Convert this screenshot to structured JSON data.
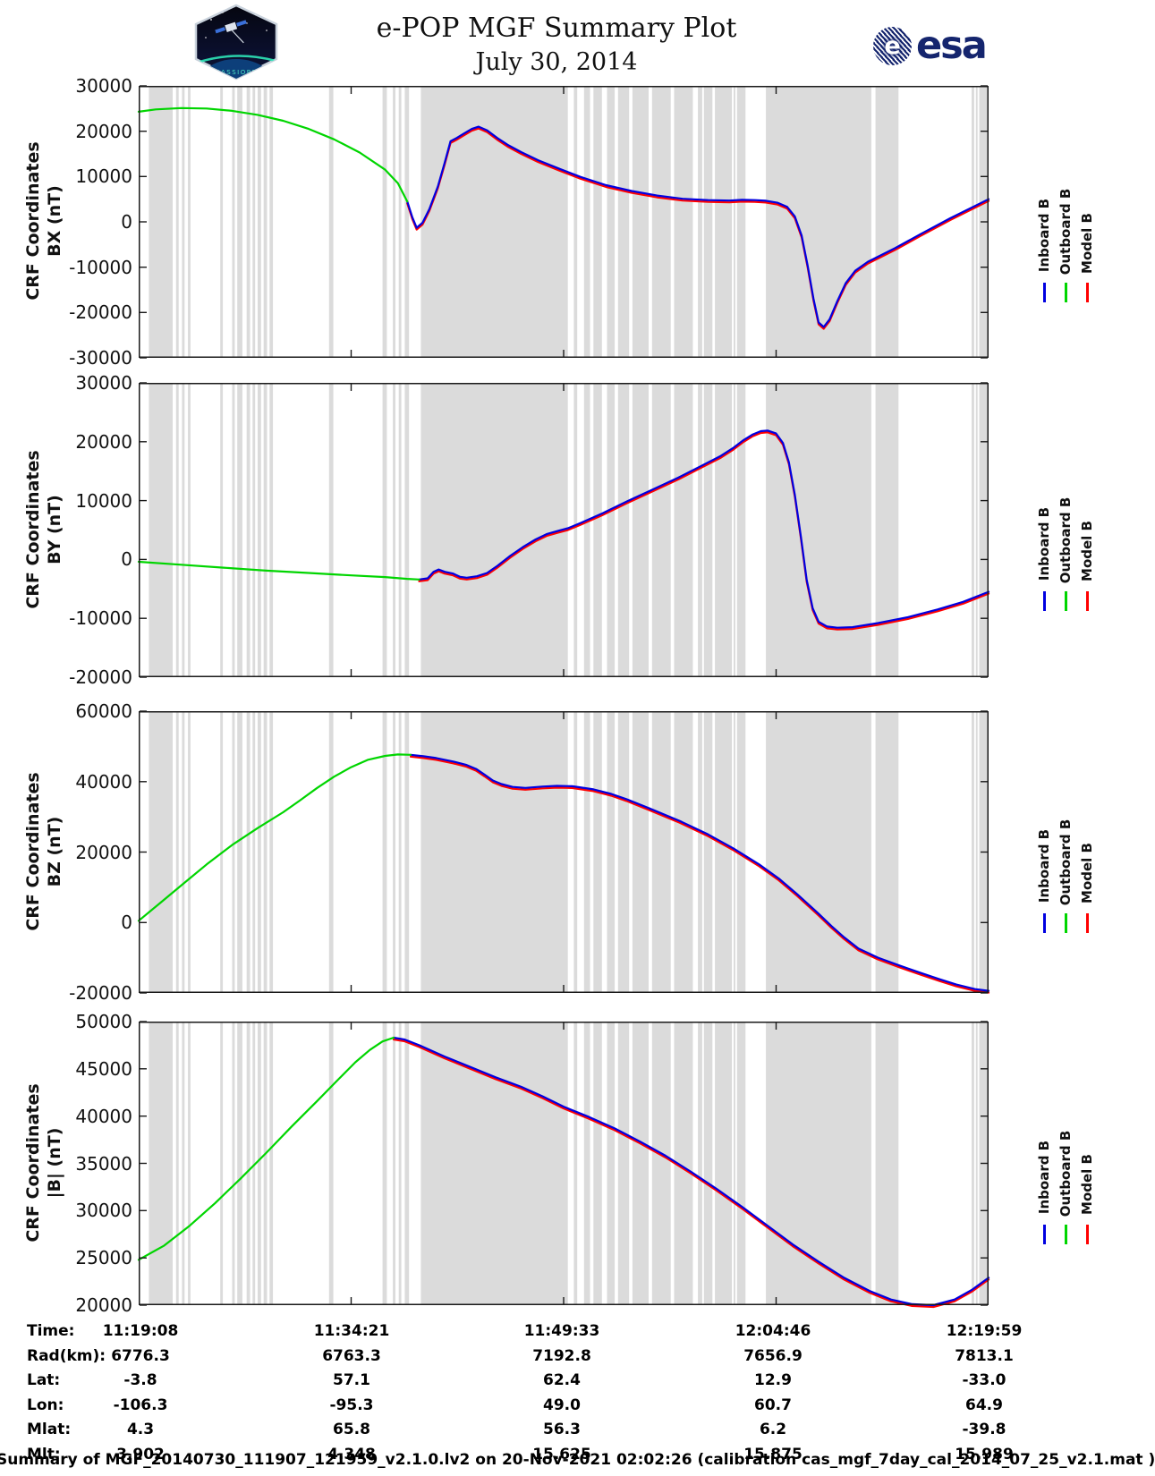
{
  "header": {
    "title_line1": "e-POP MGF Summary Plot",
    "title_line2": "July 30, 2014",
    "patch_label": "CASSIOPE",
    "esa_text": "esa"
  },
  "legend": {
    "items": [
      {
        "label": "Inboard B",
        "color": "#0000e0"
      },
      {
        "label": "Outboard B",
        "color": "#00d500"
      },
      {
        "label": "Model B",
        "color": "#ff0000"
      }
    ]
  },
  "chart_data": {
    "type": "line",
    "title": "e-POP MGF Summary Plot, July 30, 2014",
    "x_axis": {
      "label": "Time",
      "tick_times": [
        "11:19:08",
        "11:34:21",
        "11:49:33",
        "12:04:46",
        "12:19:59"
      ],
      "note": "x values below are fractions of the full time span 11:19:08 to 12:19:59"
    },
    "gray_bands": [
      [
        0.012,
        0.04
      ],
      [
        0.044,
        0.047
      ],
      [
        0.051,
        0.054
      ],
      [
        0.058,
        0.061
      ],
      [
        0.096,
        0.099
      ],
      [
        0.11,
        0.113
      ],
      [
        0.116,
        0.122
      ],
      [
        0.127,
        0.131
      ],
      [
        0.134,
        0.137
      ],
      [
        0.14,
        0.144
      ],
      [
        0.147,
        0.151
      ],
      [
        0.154,
        0.158
      ],
      [
        0.224,
        0.229
      ],
      [
        0.287,
        0.292
      ],
      [
        0.299,
        0.302
      ],
      [
        0.306,
        0.309
      ],
      [
        0.313,
        0.318
      ],
      [
        0.332,
        0.505
      ],
      [
        0.512,
        0.516
      ],
      [
        0.524,
        0.531
      ],
      [
        0.535,
        0.545
      ],
      [
        0.551,
        0.56
      ],
      [
        0.564,
        0.577
      ],
      [
        0.581,
        0.6
      ],
      [
        0.604,
        0.626
      ],
      [
        0.63,
        0.652
      ],
      [
        0.658,
        0.663
      ],
      [
        0.665,
        0.675
      ],
      [
        0.678,
        0.698
      ],
      [
        0.7,
        0.702
      ],
      [
        0.704,
        0.714
      ],
      [
        0.738,
        0.862
      ],
      [
        0.867,
        0.894
      ],
      [
        0.98,
        0.983
      ],
      [
        0.985,
        0.987
      ],
      [
        0.989,
        1.0
      ]
    ],
    "series_legend": [
      "Inboard B (blue)",
      "Outboard B (green)",
      "Model B (red, coincident with Inboard B)"
    ],
    "panels": [
      {
        "id": "bx",
        "axis_label_line1": "CRF Coordinates",
        "axis_label_line2": "BX (nT)",
        "ylim": [
          -30000,
          30000
        ],
        "yticks": [
          30000,
          20000,
          10000,
          0,
          -10000,
          -20000,
          -30000
        ],
        "ytick_labels": [
          "30000",
          "20000",
          "10000",
          "0",
          "-10000",
          "-20000",
          "-30000"
        ],
        "outboard_until_t": 0.316,
        "points": [
          [
            0,
            24300
          ],
          [
            0.02,
            24800
          ],
          [
            0.05,
            25100
          ],
          [
            0.08,
            25000
          ],
          [
            0.11,
            24500
          ],
          [
            0.14,
            23600
          ],
          [
            0.17,
            22300
          ],
          [
            0.2,
            20500
          ],
          [
            0.23,
            18200
          ],
          [
            0.26,
            15300
          ],
          [
            0.29,
            11500
          ],
          [
            0.305,
            8500
          ],
          [
            0.316,
            4500
          ],
          [
            0.322,
            1000
          ],
          [
            0.327,
            -1300
          ],
          [
            0.334,
            -200
          ],
          [
            0.342,
            2800
          ],
          [
            0.352,
            7800
          ],
          [
            0.36,
            13000
          ],
          [
            0.367,
            17800
          ],
          [
            0.374,
            18500
          ],
          [
            0.382,
            19400
          ],
          [
            0.392,
            20500
          ],
          [
            0.4,
            21000
          ],
          [
            0.41,
            20200
          ],
          [
            0.422,
            18500
          ],
          [
            0.435,
            16900
          ],
          [
            0.45,
            15400
          ],
          [
            0.47,
            13600
          ],
          [
            0.495,
            11700
          ],
          [
            0.52,
            9900
          ],
          [
            0.55,
            8100
          ],
          [
            0.58,
            6800
          ],
          [
            0.61,
            5800
          ],
          [
            0.64,
            5100
          ],
          [
            0.67,
            4800
          ],
          [
            0.695,
            4700
          ],
          [
            0.71,
            4850
          ],
          [
            0.725,
            4800
          ],
          [
            0.738,
            4650
          ],
          [
            0.752,
            4200
          ],
          [
            0.763,
            3300
          ],
          [
            0.772,
            1200
          ],
          [
            0.78,
            -3000
          ],
          [
            0.787,
            -9500
          ],
          [
            0.794,
            -17000
          ],
          [
            0.8,
            -22200
          ],
          [
            0.806,
            -23200
          ],
          [
            0.813,
            -21500
          ],
          [
            0.822,
            -17500
          ],
          [
            0.832,
            -13500
          ],
          [
            0.843,
            -10800
          ],
          [
            0.858,
            -8800
          ],
          [
            0.875,
            -7200
          ],
          [
            0.89,
            -5800
          ],
          [
            0.92,
            -2700
          ],
          [
            0.955,
            800
          ],
          [
            1.0,
            5000
          ]
        ]
      },
      {
        "id": "by",
        "axis_label_line1": "CRF Coordinates",
        "axis_label_line2": "BY (nT)",
        "ylim": [
          -20000,
          30000
        ],
        "yticks": [
          30000,
          20000,
          10000,
          0,
          -10000,
          -20000
        ],
        "ytick_labels": [
          "30000",
          "20000",
          "10000",
          "0",
          "-10000",
          "-20000"
        ],
        "outboard_until_t": 0.33,
        "points": [
          [
            0,
            -400
          ],
          [
            0.05,
            -900
          ],
          [
            0.1,
            -1400
          ],
          [
            0.15,
            -1900
          ],
          [
            0.2,
            -2300
          ],
          [
            0.25,
            -2700
          ],
          [
            0.29,
            -3000
          ],
          [
            0.316,
            -3300
          ],
          [
            0.33,
            -3400
          ],
          [
            0.34,
            -3200
          ],
          [
            0.347,
            -2100
          ],
          [
            0.353,
            -1700
          ],
          [
            0.36,
            -2100
          ],
          [
            0.37,
            -2400
          ],
          [
            0.378,
            -2950
          ],
          [
            0.386,
            -3100
          ],
          [
            0.398,
            -2850
          ],
          [
            0.41,
            -2300
          ],
          [
            0.422,
            -1100
          ],
          [
            0.437,
            600
          ],
          [
            0.452,
            2100
          ],
          [
            0.467,
            3400
          ],
          [
            0.48,
            4300
          ],
          [
            0.492,
            4800
          ],
          [
            0.505,
            5300
          ],
          [
            0.52,
            6200
          ],
          [
            0.545,
            7800
          ],
          [
            0.575,
            9900
          ],
          [
            0.605,
            11900
          ],
          [
            0.635,
            13900
          ],
          [
            0.662,
            15900
          ],
          [
            0.685,
            17600
          ],
          [
            0.7,
            19000
          ],
          [
            0.712,
            20300
          ],
          [
            0.722,
            21200
          ],
          [
            0.732,
            21800
          ],
          [
            0.74,
            21900
          ],
          [
            0.75,
            21400
          ],
          [
            0.758,
            19800
          ],
          [
            0.765,
            16500
          ],
          [
            0.772,
            11000
          ],
          [
            0.779,
            4000
          ],
          [
            0.786,
            -3500
          ],
          [
            0.793,
            -8300
          ],
          [
            0.8,
            -10600
          ],
          [
            0.81,
            -11400
          ],
          [
            0.822,
            -11600
          ],
          [
            0.84,
            -11500
          ],
          [
            0.87,
            -10800
          ],
          [
            0.905,
            -9800
          ],
          [
            0.94,
            -8500
          ],
          [
            0.97,
            -7200
          ],
          [
            1.0,
            -5500
          ]
        ]
      },
      {
        "id": "bz",
        "axis_label_line1": "CRF Coordinates",
        "axis_label_line2": "BZ (nT)",
        "ylim": [
          -20000,
          60000
        ],
        "yticks": [
          60000,
          40000,
          20000,
          0,
          -20000
        ],
        "ytick_labels": [
          "60000",
          "40000",
          "20000",
          "0",
          "-20000"
        ],
        "outboard_until_t": 0.325,
        "points": [
          [
            0,
            500
          ],
          [
            0.025,
            5500
          ],
          [
            0.05,
            10500
          ],
          [
            0.08,
            16500
          ],
          [
            0.11,
            22000
          ],
          [
            0.14,
            26800
          ],
          [
            0.17,
            31300
          ],
          [
            0.19,
            34700
          ],
          [
            0.21,
            38200
          ],
          [
            0.23,
            41400
          ],
          [
            0.25,
            44100
          ],
          [
            0.27,
            46200
          ],
          [
            0.29,
            47300
          ],
          [
            0.305,
            47700
          ],
          [
            0.32,
            47600
          ],
          [
            0.335,
            47200
          ],
          [
            0.35,
            46700
          ],
          [
            0.37,
            45700
          ],
          [
            0.385,
            44800
          ],
          [
            0.397,
            43600
          ],
          [
            0.407,
            42000
          ],
          [
            0.417,
            40300
          ],
          [
            0.427,
            39300
          ],
          [
            0.44,
            38500
          ],
          [
            0.455,
            38200
          ],
          [
            0.475,
            38600
          ],
          [
            0.492,
            38800
          ],
          [
            0.51,
            38700
          ],
          [
            0.535,
            37800
          ],
          [
            0.556,
            36500
          ],
          [
            0.574,
            35000
          ],
          [
            0.6,
            32500
          ],
          [
            0.637,
            28800
          ],
          [
            0.67,
            25000
          ],
          [
            0.7,
            21000
          ],
          [
            0.73,
            16500
          ],
          [
            0.753,
            12500
          ],
          [
            0.775,
            8000
          ],
          [
            0.8,
            2500
          ],
          [
            0.815,
            -1000
          ],
          [
            0.83,
            -4200
          ],
          [
            0.847,
            -7400
          ],
          [
            0.87,
            -10000
          ],
          [
            0.895,
            -12200
          ],
          [
            0.92,
            -14300
          ],
          [
            0.942,
            -16100
          ],
          [
            0.962,
            -17600
          ],
          [
            0.984,
            -18900
          ],
          [
            1.0,
            -19400
          ]
        ]
      },
      {
        "id": "bmag",
        "axis_label_line1": "CRF Coordinates",
        "axis_label_line2": "|B| (nT)",
        "ylim": [
          20000,
          50000
        ],
        "yticks": [
          50000,
          45000,
          40000,
          35000,
          30000,
          25000,
          20000
        ],
        "ytick_labels": [
          "50000",
          "45000",
          "40000",
          "35000",
          "30000",
          "25000",
          "20000"
        ],
        "outboard_until_t": 0.308,
        "points": [
          [
            0,
            24800
          ],
          [
            0.03,
            26300
          ],
          [
            0.06,
            28400
          ],
          [
            0.09,
            30800
          ],
          [
            0.12,
            33400
          ],
          [
            0.15,
            36100
          ],
          [
            0.18,
            38900
          ],
          [
            0.21,
            41600
          ],
          [
            0.235,
            43900
          ],
          [
            0.255,
            45700
          ],
          [
            0.272,
            47000
          ],
          [
            0.287,
            47900
          ],
          [
            0.3,
            48300
          ],
          [
            0.313,
            48100
          ],
          [
            0.33,
            47500
          ],
          [
            0.36,
            46300
          ],
          [
            0.39,
            45200
          ],
          [
            0.42,
            44100
          ],
          [
            0.45,
            43100
          ],
          [
            0.475,
            42100
          ],
          [
            0.5,
            41000
          ],
          [
            0.53,
            39900
          ],
          [
            0.56,
            38700
          ],
          [
            0.59,
            37300
          ],
          [
            0.62,
            35800
          ],
          [
            0.65,
            34100
          ],
          [
            0.68,
            32300
          ],
          [
            0.71,
            30400
          ],
          [
            0.74,
            28400
          ],
          [
            0.77,
            26400
          ],
          [
            0.8,
            24600
          ],
          [
            0.83,
            22900
          ],
          [
            0.86,
            21500
          ],
          [
            0.885,
            20600
          ],
          [
            0.91,
            20100
          ],
          [
            0.935,
            20000
          ],
          [
            0.96,
            20600
          ],
          [
            0.98,
            21600
          ],
          [
            1.0,
            22900
          ]
        ]
      }
    ]
  },
  "table": {
    "rows": [
      {
        "label": "Time:",
        "values": [
          "11:19:08",
          "11:34:21",
          "11:49:33",
          "12:04:46",
          "12:19:59"
        ]
      },
      {
        "label": "Rad(km):",
        "values": [
          "6776.3",
          "6763.3",
          "7192.8",
          "7656.9",
          "7813.1"
        ]
      },
      {
        "label": "Lat:",
        "values": [
          "-3.8",
          "57.1",
          "62.4",
          "12.9",
          "-33.0"
        ]
      },
      {
        "label": "Lon:",
        "values": [
          "-106.3",
          "-95.3",
          "49.0",
          "60.7",
          "64.9"
        ]
      },
      {
        "label": "Mlat:",
        "values": [
          "4.3",
          "65.8",
          "56.3",
          "6.2",
          "-39.8"
        ]
      },
      {
        "label": "Mlt:",
        "values": [
          "3.902",
          "4.348",
          "15.625",
          "15.875",
          "15.989"
        ]
      }
    ]
  },
  "footer": {
    "text": "Summary of MGF_20140730_111907_121959_v2.1.0.lv2 on 20-Nov-2021 02:02:26 (calibration cas_mgf_7day_cal_2014_07_25_v2.1.mat )"
  },
  "colors": {
    "inboard": "#0000e0",
    "outboard": "#00d500",
    "model": "#ff0000",
    "gray_band": "#dbdbdb",
    "axis": "#1a1a1a",
    "esa_navy": "#15256e",
    "patch_teal": "#4fe3c4"
  }
}
